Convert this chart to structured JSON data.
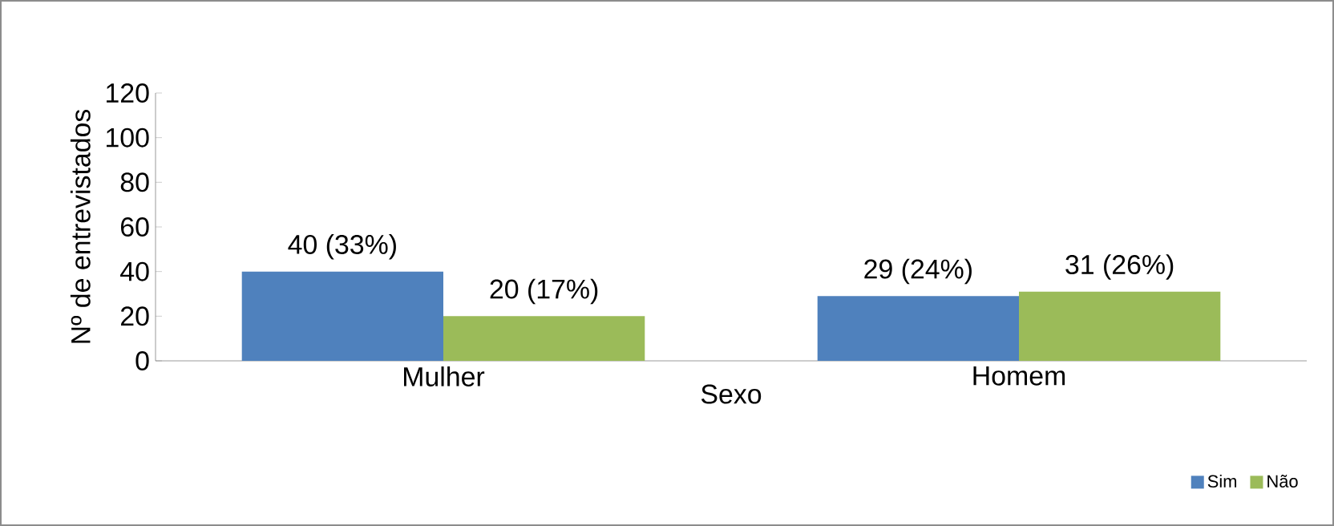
{
  "chart_data": {
    "type": "bar",
    "categories": [
      "Mulher",
      "Homem"
    ],
    "xlabel": "Sexo",
    "ylabel": "Nº de entrevistados",
    "ylim": [
      0,
      120
    ],
    "yticks": [
      0,
      20,
      40,
      60,
      80,
      100,
      120
    ],
    "grid": false,
    "legend": "bottom right",
    "series": [
      {
        "name": "Sim",
        "color": "#4f81bd",
        "values": [
          40,
          29
        ],
        "value_labels": [
          "40 (33%)",
          "29 (24%)"
        ]
      },
      {
        "name": "Não",
        "color": "#9bbb59",
        "values": [
          20,
          31
        ],
        "value_labels": [
          "20 (17%)",
          "31 (26%)"
        ]
      }
    ]
  }
}
